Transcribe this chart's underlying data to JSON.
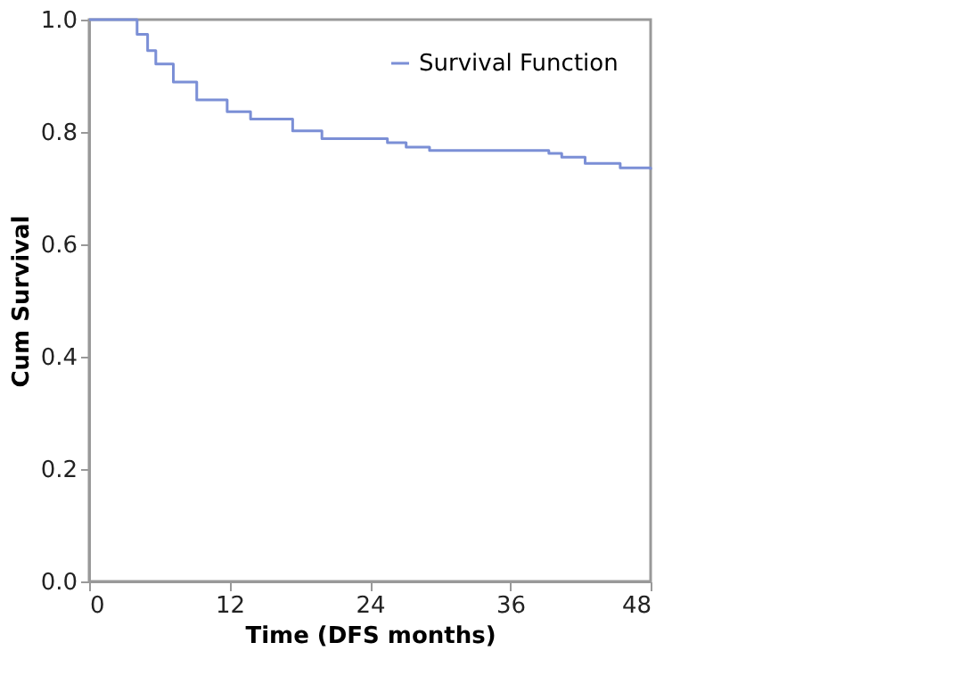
{
  "chart_data": {
    "type": "step",
    "xlabel": "Time (DFS months)",
    "ylabel": "Cum Survival",
    "x": [
      0,
      3.1,
      4.1,
      5.0,
      5.7,
      7.2,
      9.2,
      11.8,
      13.8,
      17.4,
      19.9,
      23.5,
      25.5,
      27.1,
      29.1,
      39.3,
      40.4,
      42.4,
      45.4,
      48
    ],
    "series": [
      {
        "name": "Survival Function",
        "color": "#7b8fd6",
        "values": [
          1.0,
          1.0,
          0.974,
          0.945,
          0.921,
          0.889,
          0.857,
          0.836,
          0.823,
          0.802,
          0.788,
          0.788,
          0.781,
          0.773,
          0.767,
          0.762,
          0.755,
          0.744,
          0.736,
          0.733
        ]
      }
    ],
    "xlim": [
      0,
      48
    ],
    "xticks": [
      0,
      12,
      24,
      36,
      48
    ],
    "ylim": [
      0,
      1.0
    ],
    "yticks": [
      {
        "value": 0,
        "label": "0.0"
      },
      {
        "value": 0.2,
        "label": "0.2"
      },
      {
        "value": 0.4,
        "label": "0.4"
      },
      {
        "value": 0.6,
        "label": "0.6"
      },
      {
        "value": 0.8,
        "label": "0.8"
      },
      {
        "value": 1.0,
        "label": "1.0"
      }
    ],
    "grid": false,
    "legend": "top right",
    "marker": "none",
    "line_style": "solid"
  }
}
